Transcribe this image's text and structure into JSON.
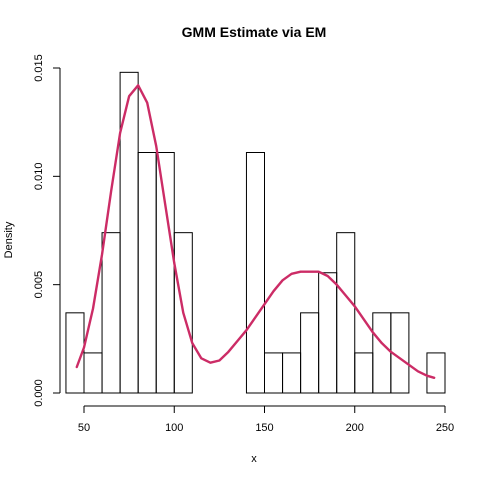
{
  "chart_data": {
    "type": "histogram",
    "title": "GMM Estimate via EM",
    "xlabel": "x",
    "ylabel": "Density",
    "xlim": [
      40,
      250
    ],
    "ylim": [
      0,
      0.015
    ],
    "x_ticks": [
      50,
      100,
      150,
      200,
      250
    ],
    "x_tick_labels": [
      "50",
      "100",
      "150",
      "200",
      "250"
    ],
    "y_ticks": [
      0,
      0.005,
      0.01,
      0.015
    ],
    "y_tick_labels": [
      "0.000",
      "0.005",
      "0.010",
      "0.015"
    ],
    "bins": [
      {
        "x0": 40,
        "x1": 50,
        "density": 0.0037
      },
      {
        "x0": 50,
        "x1": 60,
        "density": 0.00185
      },
      {
        "x0": 60,
        "x1": 70,
        "density": 0.0074
      },
      {
        "x0": 70,
        "x1": 80,
        "density": 0.0148
      },
      {
        "x0": 80,
        "x1": 90,
        "density": 0.0111
      },
      {
        "x0": 90,
        "x1": 100,
        "density": 0.0111
      },
      {
        "x0": 100,
        "x1": 110,
        "density": 0.0074
      },
      {
        "x0": 110,
        "x1": 120,
        "density": 0
      },
      {
        "x0": 120,
        "x1": 130,
        "density": 0
      },
      {
        "x0": 130,
        "x1": 140,
        "density": 0
      },
      {
        "x0": 140,
        "x1": 150,
        "density": 0.0111
      },
      {
        "x0": 150,
        "x1": 160,
        "density": 0.00185
      },
      {
        "x0": 160,
        "x1": 170,
        "density": 0.00185
      },
      {
        "x0": 170,
        "x1": 180,
        "density": 0.0037
      },
      {
        "x0": 180,
        "x1": 190,
        "density": 0.00555
      },
      {
        "x0": 190,
        "x1": 200,
        "density": 0.0074
      },
      {
        "x0": 200,
        "x1": 210,
        "density": 0.00185
      },
      {
        "x0": 210,
        "x1": 220,
        "density": 0.0037
      },
      {
        "x0": 220,
        "x1": 230,
        "density": 0.0037
      },
      {
        "x0": 230,
        "x1": 240,
        "density": 0
      },
      {
        "x0": 240,
        "x1": 250,
        "density": 0.00185
      }
    ],
    "density_curve": {
      "color": "#CC2C66",
      "x": [
        46,
        50,
        55,
        60,
        65,
        70,
        75,
        80,
        85,
        90,
        95,
        100,
        105,
        110,
        115,
        120,
        125,
        130,
        135,
        140,
        145,
        150,
        155,
        160,
        165,
        170,
        175,
        180,
        185,
        190,
        195,
        200,
        205,
        210,
        215,
        220,
        225,
        230,
        235,
        240,
        244
      ],
      "y": [
        0.0012,
        0.0021,
        0.0039,
        0.0064,
        0.0093,
        0.012,
        0.0137,
        0.0142,
        0.0134,
        0.0114,
        0.0087,
        0.006,
        0.0037,
        0.0023,
        0.0016,
        0.0014,
        0.0015,
        0.0019,
        0.0024,
        0.0029,
        0.0035,
        0.0041,
        0.0047,
        0.0052,
        0.0055,
        0.0056,
        0.0056,
        0.0056,
        0.0054,
        0.005,
        0.0045,
        0.004,
        0.0034,
        0.0028,
        0.0023,
        0.0019,
        0.0016,
        0.0013,
        0.001,
        0.0008,
        0.0007
      ]
    }
  }
}
